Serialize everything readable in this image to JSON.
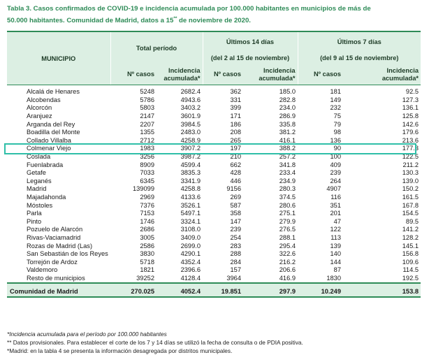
{
  "caption": {
    "line1": "Tabla 3. Casos confirmados de COVID-19 e incidencia acumulada por 100.000 habitantes en municipios de más de",
    "line2a": "50.000 habitantes. Comunidad de Madrid, datos a 15",
    "line2sup": "**",
    "line2b": " de noviembre de 2020."
  },
  "header": {
    "municipio": "MUNICIPIO",
    "total_periodo": "Total período",
    "ultimos14": "Últimos 14 días",
    "ultimos14_range": "(del 2 al 15 de noviembre)",
    "ultimos7": "Últimos 7 días",
    "ultimos7_range": "(del 9 al 15 de noviembre)",
    "n_casos": "Nº casos",
    "incidencia_l1": "Incidencia",
    "incidencia_l2": "acumulada*"
  },
  "rows": [
    [
      "Alcalá de Henares",
      "5248",
      "2682.4",
      "362",
      "185.0",
      "181",
      "92.5"
    ],
    [
      "Alcobendas",
      "5786",
      "4943.6",
      "331",
      "282.8",
      "149",
      "127.3"
    ],
    [
      "Alcorcón",
      "5803",
      "3403.2",
      "399",
      "234.0",
      "232",
      "136.1"
    ],
    [
      "Aranjuez",
      "2147",
      "3601.9",
      "171",
      "286.9",
      "75",
      "125.8"
    ],
    [
      "Arganda del Rey",
      "2207",
      "3984.5",
      "186",
      "335.8",
      "79",
      "142.6"
    ],
    [
      "Boadilla del Monte",
      "1355",
      "2483.0",
      "208",
      "381.2",
      "98",
      "179.6"
    ],
    [
      "Collado Villalba",
      "2712",
      "4258.9",
      "265",
      "416.1",
      "136",
      "213.6"
    ],
    [
      "Colmenar Viejo",
      "1983",
      "3907.2",
      "197",
      "388.2",
      "90",
      "177.3"
    ],
    [
      "Coslada",
      "3256",
      "3987.2",
      "210",
      "257.2",
      "100",
      "122.5"
    ],
    [
      "Fuenlabrada",
      "8909",
      "4599.4",
      "662",
      "341.8",
      "409",
      "211.2"
    ],
    [
      "Getafe",
      "7033",
      "3835.3",
      "428",
      "233.4",
      "239",
      "130.3"
    ],
    [
      "Leganés",
      "6345",
      "3341.9",
      "446",
      "234.9",
      "264",
      "139.0"
    ],
    [
      "Madrid",
      "139099",
      "4258.8",
      "9156",
      "280.3",
      "4907",
      "150.2"
    ],
    [
      "Majadahonda",
      "2969",
      "4133.6",
      "269",
      "374.5",
      "116",
      "161.5"
    ],
    [
      "Móstoles",
      "7376",
      "3526.1",
      "587",
      "280.6",
      "351",
      "167.8"
    ],
    [
      "Parla",
      "7153",
      "5497.1",
      "358",
      "275.1",
      "201",
      "154.5"
    ],
    [
      "Pinto",
      "1746",
      "3324.1",
      "147",
      "279.9",
      "47",
      "89.5"
    ],
    [
      "Pozuelo de Alarcón",
      "2686",
      "3108.0",
      "239",
      "276.5",
      "122",
      "141.2"
    ],
    [
      "Rivas-Vaciamadrid",
      "3005",
      "3409.0",
      "254",
      "288.1",
      "113",
      "128.2"
    ],
    [
      "Rozas de Madrid (Las)",
      "2586",
      "2699.0",
      "283",
      "295.4",
      "139",
      "145.1"
    ],
    [
      "San Sebastián de los Reyes",
      "3830",
      "4290.1",
      "288",
      "322.6",
      "140",
      "156.8"
    ],
    [
      "Torrejón de Ardoz",
      "5718",
      "4352.4",
      "284",
      "216.2",
      "144",
      "109.6"
    ],
    [
      "Valdemoro",
      "1821",
      "2396.6",
      "157",
      "206.6",
      "87",
      "114.5"
    ],
    [
      "Resto de municipios",
      "39252",
      "4128.4",
      "3964",
      "416.9",
      "1830",
      "192.5"
    ]
  ],
  "total": [
    "Comunidad de Madrid",
    "270.025",
    "4052.4",
    "19.851",
    "297.9",
    "10.249",
    "153.8"
  ],
  "highlight_row": "Colmenar Viejo",
  "notes": {
    "n1": "*Incidencia acumulada para el período por 100.000 habitantes",
    "n2": "** Datos provisionales. Para establecer el corte de los 7 y 14 días se utilizó la fecha de consulta o de PDIA positiva.",
    "n3": "*Madrid: en la tabla 4 se presenta la información desagregada por distritos municipales."
  },
  "colors": {
    "title_green": "#2e8b57",
    "header_bg": "#dcefe3",
    "highlight_border": "#2fbfa8"
  }
}
